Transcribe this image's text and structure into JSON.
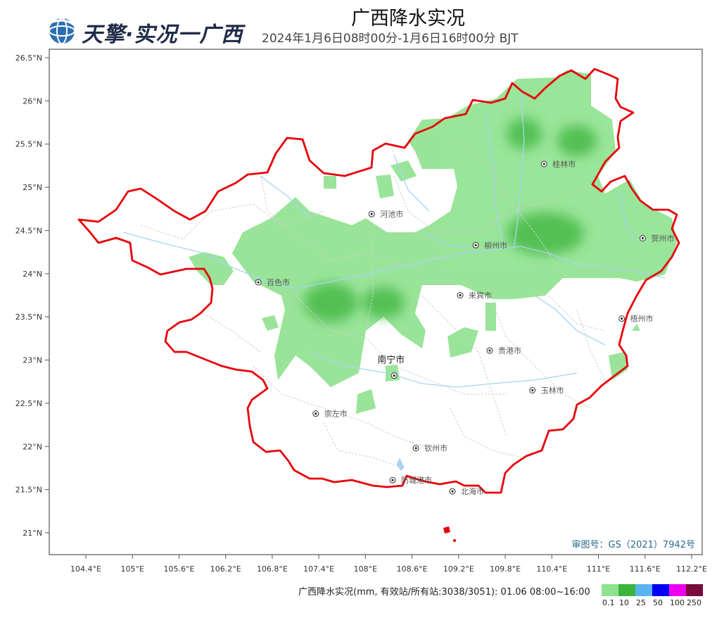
{
  "header": {
    "logo_text": "天擎·实况一广西",
    "title": "广西降水实况",
    "subtitle": "2024年1月6日08时00分-1月6日16时00分 BJT"
  },
  "axes": {
    "lat_labels": [
      "26.5°N",
      "26°N",
      "25.5°N",
      "25°N",
      "24.5°N",
      "24°N",
      "23.5°N",
      "23°N",
      "22.5°N",
      "22°N",
      "21.5°N",
      "21°N"
    ],
    "lon_labels": [
      "104.4°E",
      "105°E",
      "105.6°E",
      "106.2°E",
      "106.8°E",
      "107.4°E",
      "108°E",
      "108.6°E",
      "109.2°E",
      "109.8°E",
      "110.4°E",
      "111°E",
      "111.6°E",
      "112.2°E"
    ]
  },
  "cities": [
    {
      "name": "桂林市",
      "lon": 110.3,
      "lat": 25.27
    },
    {
      "name": "河池市",
      "lon": 108.08,
      "lat": 24.69
    },
    {
      "name": "柳州市",
      "lon": 109.42,
      "lat": 24.33
    },
    {
      "name": "贺州市",
      "lon": 111.57,
      "lat": 24.41
    },
    {
      "name": "百色市",
      "lon": 106.62,
      "lat": 23.9
    },
    {
      "name": "来宾市",
      "lon": 109.22,
      "lat": 23.75
    },
    {
      "name": "梧州市",
      "lon": 111.3,
      "lat": 23.48
    },
    {
      "name": "贵港市",
      "lon": 109.6,
      "lat": 23.11
    },
    {
      "name": "南宁市",
      "lon": 108.37,
      "lat": 22.82
    },
    {
      "name": "玉林市",
      "lon": 110.15,
      "lat": 22.65
    },
    {
      "name": "崇左市",
      "lon": 107.36,
      "lat": 22.38
    },
    {
      "name": "钦州市",
      "lon": 108.65,
      "lat": 21.98
    },
    {
      "name": "北海市",
      "lon": 109.12,
      "lat": 21.48
    },
    {
      "name": "防城港市",
      "lon": 108.35,
      "lat": 21.61
    }
  ],
  "review_number": "审图号：GS（2021）7942号",
  "legend": {
    "label": "广西降水实况(mm, 有效站/所有站:3038/3051): 01.06 08:00~16:00",
    "items": [
      {
        "value": "0.1",
        "color": "#8ee28e"
      },
      {
        "value": "10",
        "color": "#3cb43c"
      },
      {
        "value": "25",
        "color": "#5ab4f0"
      },
      {
        "value": "50",
        "color": "#0000f0"
      },
      {
        "value": "100",
        "color": "#f000f0"
      },
      {
        "value": "250",
        "color": "#780a3c"
      }
    ]
  }
}
